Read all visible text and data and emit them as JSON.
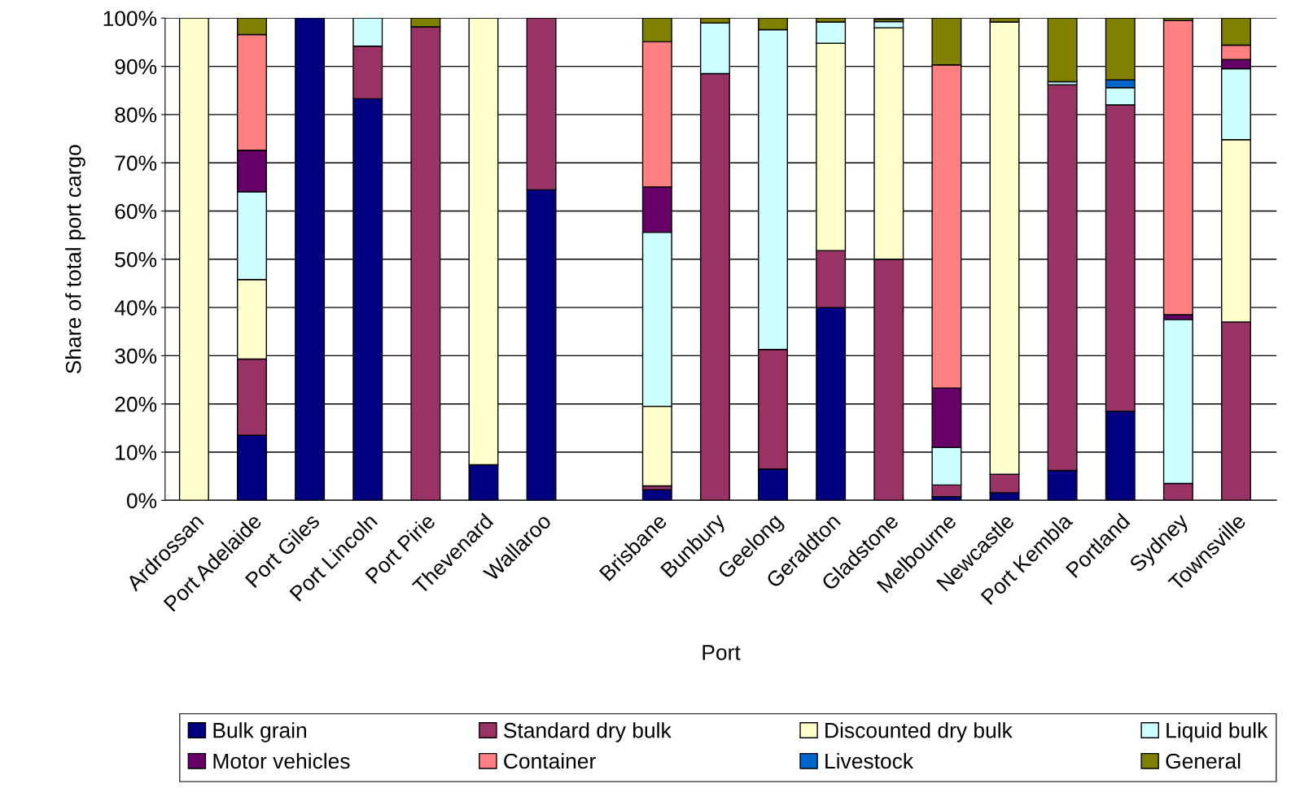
{
  "chart_data": {
    "type": "bar",
    "stacked": true,
    "xlabel": "Port",
    "ylabel": "Share of total port cargo",
    "categories": [
      "Ardrossan",
      "Port Adelaide",
      "Port Giles",
      "Port Lincoln",
      "Port Pirie",
      "Thevenard",
      "Wallaroo",
      null,
      "Brisbane",
      "Bunbury",
      "Geelong",
      "Geraldton",
      "Gladstone",
      "Melbourne",
      "Newcastle",
      "Port Kembla",
      "Portland",
      "Sydney",
      "Townsville"
    ],
    "ylim": [
      0,
      100
    ],
    "yticks": [
      {
        "value": 0,
        "label": "0%"
      },
      {
        "value": 10,
        "label": "10%"
      },
      {
        "value": 20,
        "label": "20%"
      },
      {
        "value": 30,
        "label": "30%"
      },
      {
        "value": 40,
        "label": "40%"
      },
      {
        "value": 50,
        "label": "50%"
      },
      {
        "value": 60,
        "label": "60%"
      },
      {
        "value": 70,
        "label": "70%"
      },
      {
        "value": 80,
        "label": "80%"
      },
      {
        "value": 90,
        "label": "90%"
      },
      {
        "value": 100,
        "label": "100%"
      }
    ],
    "grid": "y",
    "legend": "bottom",
    "series": [
      {
        "name": "Bulk grain",
        "color": "#000080",
        "values": [
          0,
          13.5,
          100,
          83.3,
          0,
          7.4,
          64.4,
          null,
          2.2,
          0,
          6.5,
          40,
          null,
          0.8,
          1.6,
          6.2,
          18.5,
          0,
          0
        ]
      },
      {
        "name": "Standard dry bulk",
        "color": "#993366",
        "values": [
          0,
          15.8,
          0,
          10.9,
          98.2,
          0,
          35.6,
          null,
          0.8,
          88.5,
          24.8,
          11.8,
          50,
          2.4,
          3.8,
          80,
          63.5,
          3.5,
          37
        ]
      },
      {
        "name": "Discounted dry bulk",
        "color": "#ffffcc",
        "values": [
          100,
          16.5,
          0,
          0,
          0,
          92.6,
          0,
          null,
          16.5,
          0,
          0,
          43,
          48,
          0,
          93.8,
          0,
          0,
          0,
          37.8
        ]
      },
      {
        "name": "Liquid bulk",
        "color": "#ccffff",
        "values": [
          0,
          18.2,
          0,
          5.8,
          0,
          0,
          0,
          null,
          36.1,
          10.5,
          66.3,
          4.4,
          1.3,
          7.8,
          0,
          0.6,
          3.6,
          34,
          14.7
        ]
      },
      {
        "name": "Motor vehicles",
        "color": "#660066",
        "values": [
          0,
          8.6,
          0,
          0,
          0,
          0,
          0,
          null,
          9.4,
          0,
          0,
          0,
          0,
          12.3,
          0,
          0,
          0,
          1,
          1.9
        ]
      },
      {
        "name": "Container",
        "color": "#ff8080",
        "values": [
          0,
          24,
          0,
          0,
          0,
          0,
          0,
          null,
          30.1,
          0,
          0,
          0,
          0,
          67,
          0,
          0,
          0,
          61,
          3
        ]
      },
      {
        "name": "Livestock",
        "color": "#0066cc",
        "values": [
          0,
          0,
          0,
          0,
          0,
          0,
          0,
          null,
          0,
          0,
          0,
          0,
          0,
          0,
          0,
          0,
          1.6,
          0,
          0
        ]
      },
      {
        "name": "General",
        "color": "#808000",
        "values": [
          0,
          3.4,
          0,
          0,
          1.8,
          0,
          0,
          null,
          4.9,
          1,
          2.4,
          0.8,
          0.5,
          9.7,
          0.8,
          13.2,
          12.8,
          0.5,
          5.6
        ]
      }
    ]
  }
}
